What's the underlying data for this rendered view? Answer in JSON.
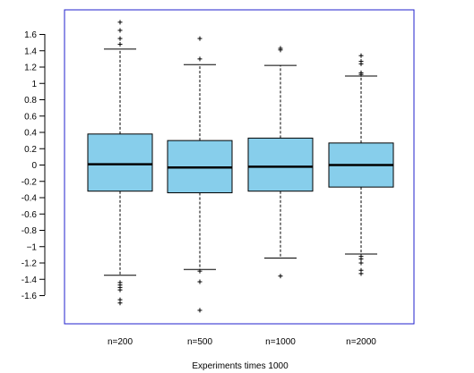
{
  "chart_data": {
    "type": "boxplot",
    "xlabel": "Experiments times 1000",
    "ylabel": "",
    "ylim": [
      -1.85,
      1.78
    ],
    "y_ticks": [
      -1.6,
      -1.4,
      -1.2,
      -1,
      -0.8,
      -0.6,
      -0.4,
      -0.2,
      0,
      0.2,
      0.4,
      0.6,
      0.8,
      1,
      1.2,
      1.4,
      1.6
    ],
    "y_tick_labels": [
      "-1.6",
      "-1.4",
      "-1.2",
      "−1",
      "-0.8",
      "-0.6",
      "-0.4",
      "-0.2",
      "0",
      "0.2",
      "0.4",
      "0.6",
      "0.8",
      "1",
      "1.2",
      "1.4",
      "1.6"
    ],
    "categories": [
      "n=200",
      "n=500",
      "n=1000",
      "n=2000"
    ],
    "box_color": "#87ceeb",
    "frame_color": "#2222cc",
    "boxes": [
      {
        "q1": -0.32,
        "median": 0.01,
        "q3": 0.38,
        "whisker_low": -1.35,
        "whisker_high": 1.42,
        "outliers": [
          1.75,
          1.65,
          1.55,
          1.48,
          -1.44,
          -1.47,
          -1.5,
          -1.53,
          -1.65,
          -1.69
        ]
      },
      {
        "q1": -0.34,
        "median": -0.03,
        "q3": 0.3,
        "whisker_low": -1.28,
        "whisker_high": 1.23,
        "outliers": [
          1.55,
          1.3,
          -1.3,
          -1.43,
          -1.78
        ]
      },
      {
        "q1": -0.32,
        "median": -0.02,
        "q3": 0.33,
        "whisker_low": -1.14,
        "whisker_high": 1.22,
        "outliers": [
          1.43,
          1.41,
          -1.36
        ]
      },
      {
        "q1": -0.27,
        "median": 0.0,
        "q3": 0.27,
        "whisker_low": -1.09,
        "whisker_high": 1.09,
        "outliers": [
          1.34,
          1.27,
          1.24,
          1.13,
          1.11,
          -1.12,
          -1.15,
          -1.2,
          -1.29,
          -1.33
        ]
      }
    ]
  }
}
